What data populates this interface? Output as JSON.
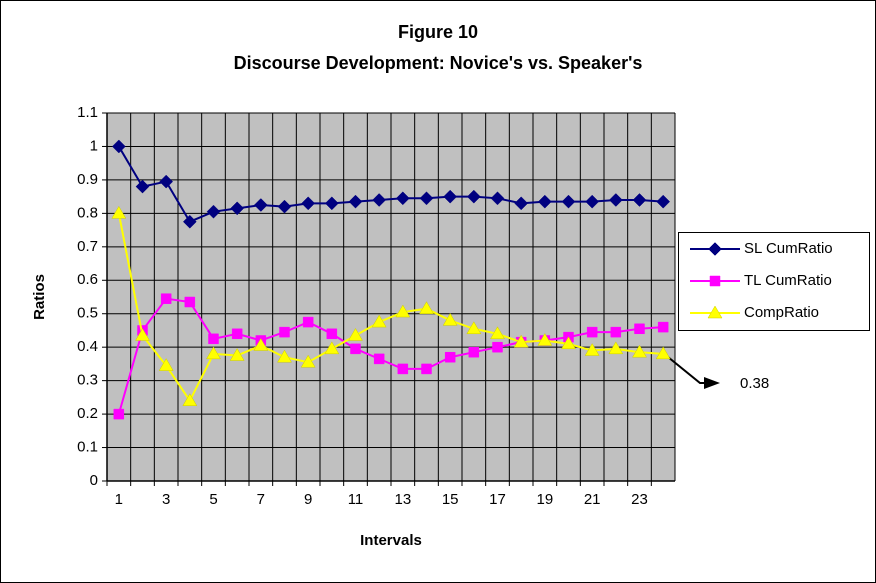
{
  "chart_data": {
    "type": "line",
    "title": "Figure 10",
    "subtitle": "Discourse Development: Novice's vs. Speaker's",
    "x_label": "Intervals",
    "y_label": "Ratios",
    "annotation": "0.38",
    "categories": [
      1,
      null,
      3,
      null,
      5,
      null,
      7,
      null,
      9,
      null,
      11,
      null,
      13,
      null,
      15,
      null,
      17,
      null,
      19,
      null,
      21,
      null,
      23,
      null
    ],
    "series": [
      {
        "name": "SL CumRatio",
        "color": "#000080",
        "marker": "diamond",
        "values": [
          1.0,
          0.88,
          0.895,
          0.775,
          0.805,
          0.815,
          0.825,
          0.82,
          0.83,
          0.83,
          0.835,
          0.84,
          0.845,
          0.845,
          0.85,
          0.85,
          0.845,
          0.83,
          0.835,
          0.835,
          0.835,
          0.84,
          0.84,
          0.835
        ]
      },
      {
        "name": "TL CumRatio",
        "color": "#ff00ff",
        "marker": "square",
        "values": [
          0.2,
          0.45,
          0.545,
          0.535,
          0.425,
          0.44,
          0.42,
          0.445,
          0.475,
          0.44,
          0.395,
          0.365,
          0.335,
          0.335,
          0.37,
          0.385,
          0.4,
          0.415,
          0.42,
          0.43,
          0.445,
          0.445,
          0.455,
          0.46
        ]
      },
      {
        "name": "CompRatio",
        "color": "#ffff00",
        "marker": "triangle",
        "values": [
          0.8,
          0.435,
          0.345,
          0.24,
          0.38,
          0.375,
          0.405,
          0.37,
          0.355,
          0.395,
          0.435,
          0.475,
          0.505,
          0.515,
          0.48,
          0.455,
          0.44,
          0.415,
          0.42,
          0.41,
          0.39,
          0.395,
          0.385,
          0.38
        ]
      }
    ],
    "ylim": [
      0,
      1.1
    ],
    "yticks": [
      0,
      0.1,
      0.2,
      0.3,
      0.4,
      0.5,
      0.6,
      0.7,
      0.8,
      0.9,
      1,
      1.1
    ],
    "grid": true,
    "plot_background": "#c0c0c0",
    "legend": "right"
  }
}
